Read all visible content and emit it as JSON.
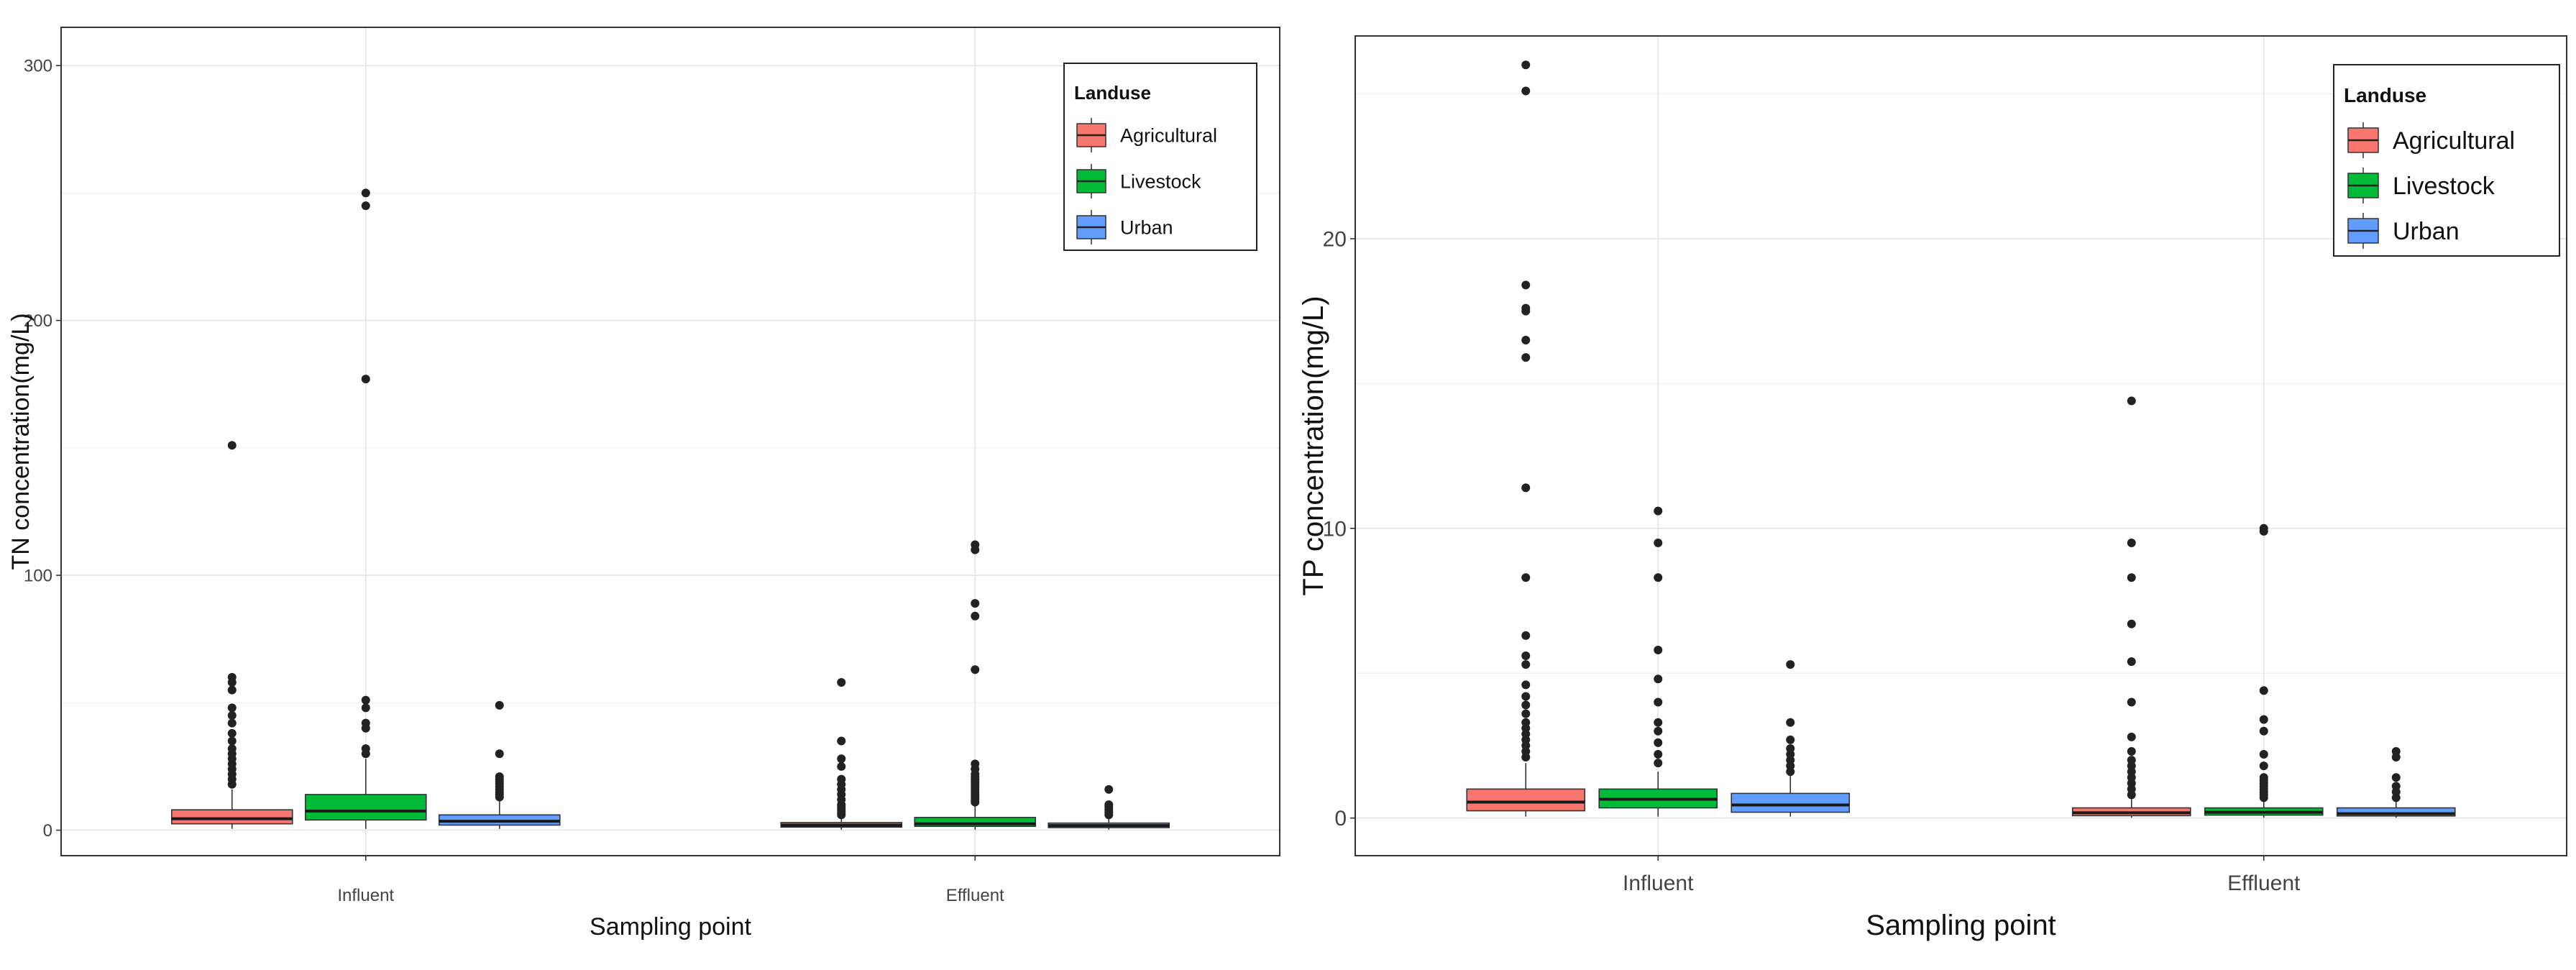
{
  "chart_data": [
    {
      "type": "boxplot",
      "panel": "left",
      "xlabel": "Sampling point",
      "ylabel": "TN concentration(mg/L)",
      "ylim": [
        -10,
        315
      ],
      "yticks": [
        0,
        100,
        200,
        300
      ],
      "grid": true,
      "legend_position": "top-right",
      "legend_title": "Landuse",
      "categories": [
        "Influent",
        "Effluent"
      ],
      "colors": {
        "Agricultural": "#F8766D",
        "Livestock": "#00BA38",
        "Urban": "#619CFF"
      },
      "series": [
        {
          "name": "Agricultural",
          "boxes": [
            {
              "category": "Influent",
              "min": 0.5,
              "q1": 2.5,
              "median": 4.5,
              "q3": 8.0,
              "max": 16.0,
              "outliers": [
                18,
                20,
                22,
                24,
                26,
                28,
                30,
                32,
                35,
                38,
                42,
                45,
                48,
                55,
                58,
                60,
                151
              ]
            },
            {
              "category": "Effluent",
              "min": 0.2,
              "q1": 1.2,
              "median": 2.0,
              "q3": 3.0,
              "max": 5.0,
              "outliers": [
                6,
                7,
                8,
                9,
                10,
                12,
                14,
                16,
                18,
                20,
                25,
                28,
                35,
                58
              ]
            }
          ]
        },
        {
          "name": "Livestock",
          "boxes": [
            {
              "category": "Influent",
              "min": 0.5,
              "q1": 4.0,
              "median": 7.5,
              "q3": 14.0,
              "max": 28.0,
              "outliers": [
                30,
                32,
                40,
                42,
                48,
                51,
                177,
                245,
                250
              ]
            },
            {
              "category": "Effluent",
              "min": 0.2,
              "q1": 1.5,
              "median": 2.5,
              "q3": 5.0,
              "max": 10.0,
              "outliers": [
                11,
                12,
                13,
                14,
                15,
                16,
                17,
                18,
                19,
                20,
                21,
                22,
                24,
                26,
                63,
                84,
                89,
                110,
                112
              ]
            }
          ]
        },
        {
          "name": "Urban",
          "boxes": [
            {
              "category": "Influent",
              "min": 0.5,
              "q1": 2.0,
              "median": 3.5,
              "q3": 6.0,
              "max": 12.0,
              "outliers": [
                13,
                14,
                15,
                16,
                17,
                18,
                19,
                20,
                21,
                30,
                49
              ]
            },
            {
              "category": "Effluent",
              "min": 0.2,
              "q1": 1.0,
              "median": 1.8,
              "q3": 2.8,
              "max": 4.5,
              "outliers": [
                6,
                7,
                8,
                9,
                10,
                16
              ]
            }
          ]
        }
      ]
    },
    {
      "type": "boxplot",
      "panel": "right",
      "xlabel": "Sampling point",
      "ylabel": "TP concentration(mg/L)",
      "ylim": [
        -1.3,
        27
      ],
      "yticks": [
        0,
        10,
        20
      ],
      "grid": true,
      "legend_position": "top-right",
      "legend_title": "Landuse",
      "categories": [
        "Influent",
        "Effluent"
      ],
      "colors": {
        "Agricultural": "#F8766D",
        "Livestock": "#00BA38",
        "Urban": "#619CFF"
      },
      "series": [
        {
          "name": "Agricultural",
          "boxes": [
            {
              "category": "Influent",
              "min": 0.05,
              "q1": 0.25,
              "median": 0.55,
              "q3": 1.0,
              "max": 1.9,
              "outliers": [
                2.1,
                2.3,
                2.5,
                2.7,
                2.9,
                3.1,
                3.3,
                3.6,
                3.9,
                4.2,
                4.6,
                5.3,
                5.6,
                6.3,
                8.3,
                11.4,
                15.9,
                16.5,
                17.5,
                17.6,
                18.4,
                25.1,
                26.0
              ]
            },
            {
              "category": "Effluent",
              "min": 0.01,
              "q1": 0.08,
              "median": 0.18,
              "q3": 0.35,
              "max": 0.7,
              "outliers": [
                0.8,
                1.0,
                1.2,
                1.4,
                1.6,
                1.8,
                2.0,
                2.3,
                2.8,
                4.0,
                5.4,
                6.7,
                8.3,
                9.5,
                14.4
              ]
            }
          ]
        },
        {
          "name": "Livestock",
          "boxes": [
            {
              "category": "Influent",
              "min": 0.05,
              "q1": 0.35,
              "median": 0.65,
              "q3": 1.0,
              "max": 1.6,
              "outliers": [
                1.9,
                2.2,
                2.6,
                3.0,
                3.3,
                4.0,
                4.8,
                5.8,
                8.3,
                9.5,
                10.6
              ]
            },
            {
              "category": "Effluent",
              "min": 0.01,
              "q1": 0.1,
              "median": 0.2,
              "q3": 0.35,
              "max": 0.6,
              "outliers": [
                0.7,
                0.8,
                0.9,
                1.0,
                1.1,
                1.2,
                1.3,
                1.4,
                1.8,
                2.2,
                3.0,
                3.4,
                4.4,
                9.9,
                10.0
              ]
            }
          ]
        },
        {
          "name": "Urban",
          "boxes": [
            {
              "category": "Influent",
              "min": 0.05,
              "q1": 0.2,
              "median": 0.45,
              "q3": 0.85,
              "max": 1.5,
              "outliers": [
                1.6,
                1.8,
                2.0,
                2.2,
                2.4,
                2.7,
                3.3,
                5.3
              ]
            },
            {
              "category": "Effluent",
              "min": 0.01,
              "q1": 0.07,
              "median": 0.15,
              "q3": 0.35,
              "max": 0.6,
              "outliers": [
                0.7,
                0.9,
                1.1,
                1.4,
                2.1,
                2.3
              ]
            }
          ]
        }
      ]
    }
  ]
}
